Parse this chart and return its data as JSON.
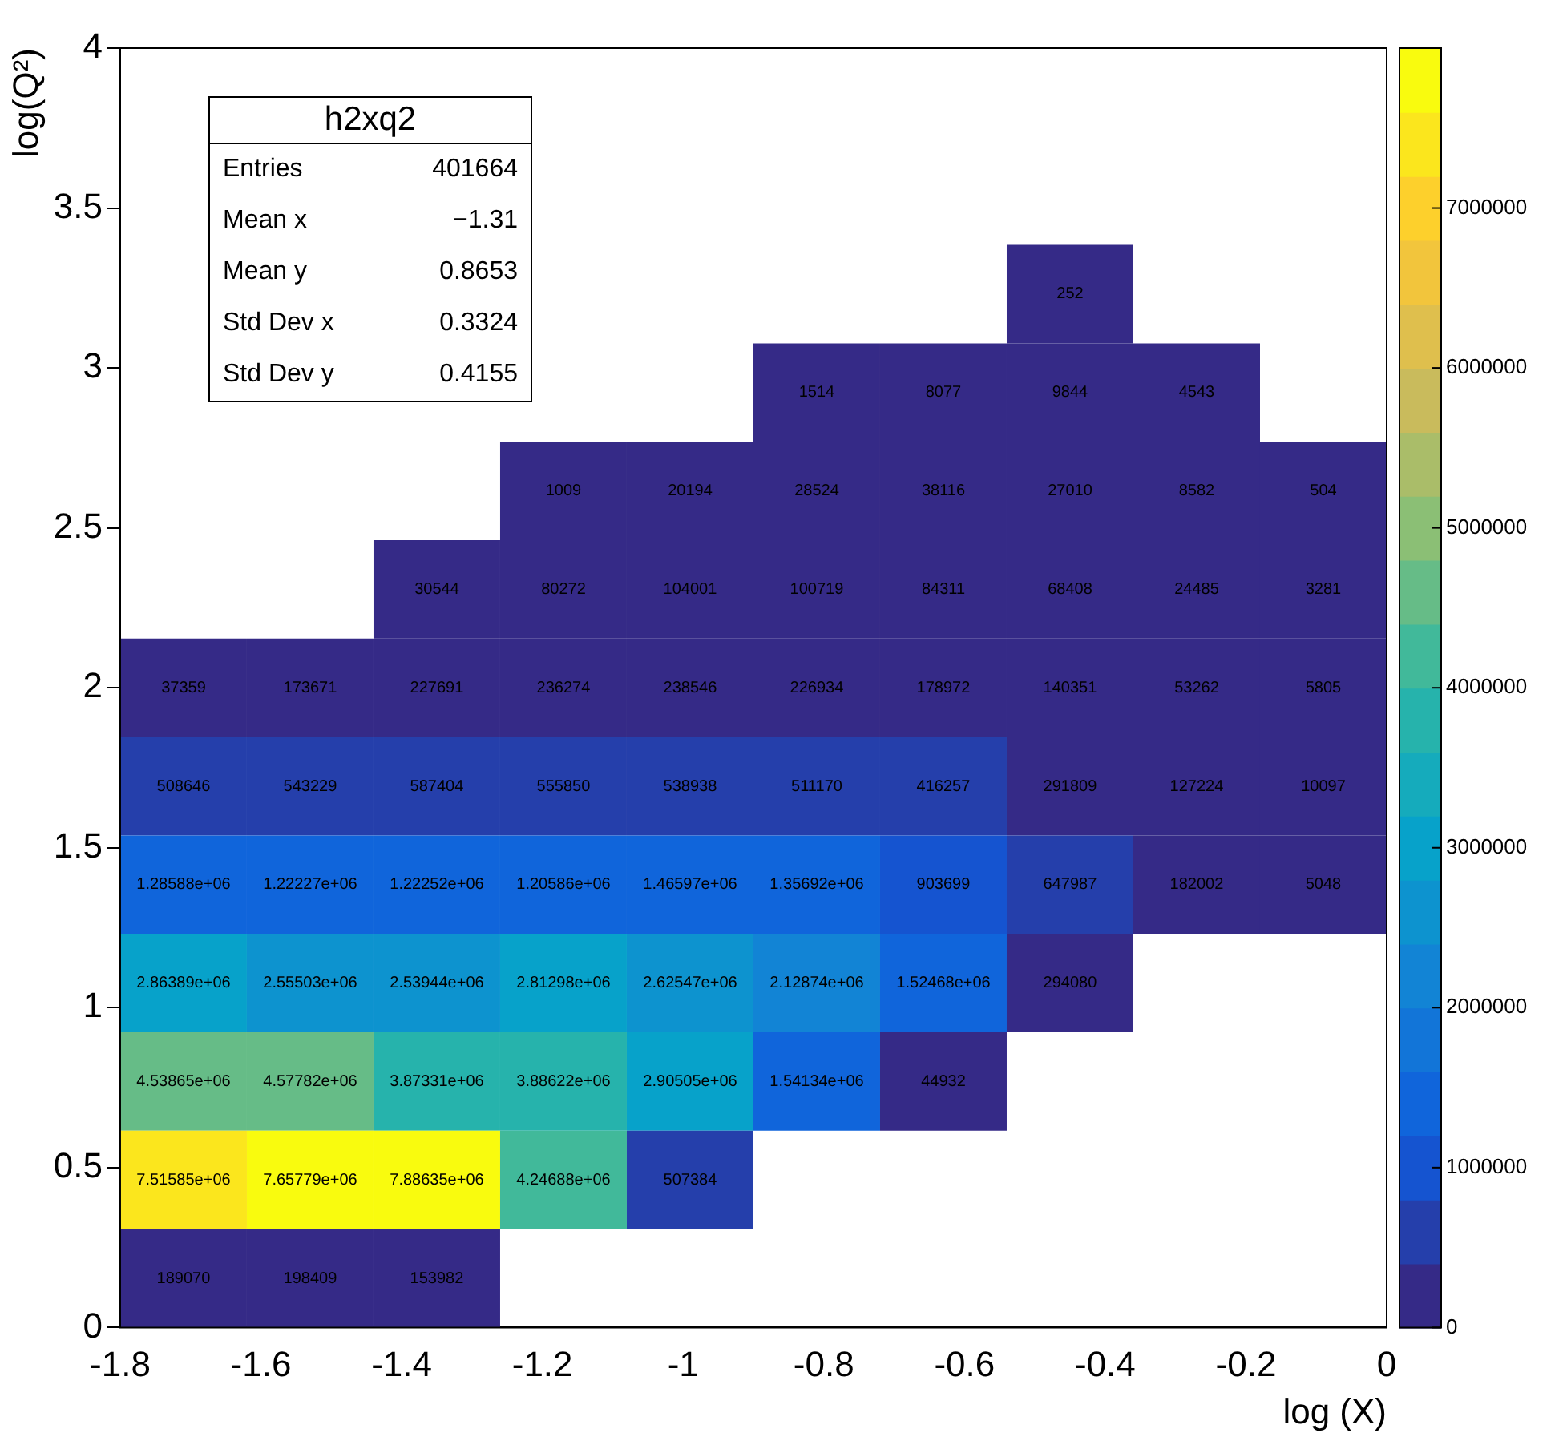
{
  "chart_data": {
    "type": "heatmap",
    "xlabel": "log (X)",
    "ylabel": "log(Q²)",
    "x": [
      -1.71,
      -1.53,
      -1.35,
      -1.17,
      -0.99,
      -0.81,
      -0.63,
      -0.45,
      -0.27,
      -0.09
    ],
    "y": [
      3.2308,
      2.9231,
      2.6154,
      2.3077,
      2.0,
      1.6923,
      1.3846,
      1.0769,
      0.7692,
      0.4615,
      0.1538
    ],
    "xlim": [
      -1.8,
      0
    ],
    "xticks": [
      -1.8,
      -1.6,
      -1.4,
      -1.2,
      -1,
      -0.8,
      -0.6,
      -0.4,
      -0.2,
      0
    ],
    "ylim": [
      0,
      4
    ],
    "yticks": [
      0,
      0.5,
      1,
      1.5,
      2,
      2.5,
      3,
      3.5,
      4
    ],
    "cells": [
      [
        null,
        null,
        null,
        null,
        null,
        null,
        null,
        252,
        null,
        null
      ],
      [
        null,
        null,
        null,
        null,
        null,
        1514,
        8077,
        9844,
        4543,
        null
      ],
      [
        null,
        null,
        null,
        1009,
        20194,
        28524,
        38116,
        27010,
        8582,
        504
      ],
      [
        null,
        null,
        30544,
        80272,
        104001,
        100719,
        84311,
        68408,
        24485,
        3281
      ],
      [
        37359,
        173671,
        227691,
        236274,
        238546,
        226934,
        178972,
        140351,
        53262,
        5805
      ],
      [
        508646,
        543229,
        587404,
        555850,
        538938,
        511170,
        416257,
        291809,
        127224,
        10097
      ],
      [
        1285880,
        1222270,
        1222520,
        1205860,
        1465970,
        1356920,
        903699,
        647987,
        182002,
        5048
      ],
      [
        2863890,
        2555030,
        2539440,
        2812980,
        2625470,
        2128740,
        1524680,
        294080,
        null,
        null
      ],
      [
        4538650,
        4577820,
        3873310,
        3886220,
        2905050,
        1541340,
        44932,
        null,
        null,
        null
      ],
      [
        7515850,
        7657790,
        7886350,
        4246880,
        507384,
        null,
        null,
        null,
        null,
        null
      ],
      [
        189070,
        198409,
        153982,
        null,
        null,
        null,
        null,
        null,
        null,
        null
      ]
    ],
    "data_labels": true,
    "cell_labels": [
      [
        null,
        null,
        null,
        null,
        null,
        null,
        null,
        "252",
        null,
        null
      ],
      [
        null,
        null,
        null,
        null,
        null,
        "1514",
        "8077",
        "9844",
        "4543",
        null
      ],
      [
        null,
        null,
        null,
        "1009",
        "20194",
        "28524",
        "38116",
        "27010",
        "8582",
        "504"
      ],
      [
        null,
        null,
        "30544",
        "80272",
        "104001",
        "100719",
        "84311",
        "68408",
        "24485",
        "3281"
      ],
      [
        "37359",
        "173671",
        "227691",
        "236274",
        "238546",
        "226934",
        "178972",
        "140351",
        "53262",
        "5805"
      ],
      [
        "508646",
        "543229",
        "587404",
        "555850",
        "538938",
        "511170",
        "416257",
        "291809",
        "127224",
        "10097"
      ],
      [
        "1.28588e+06",
        "1.22227e+06",
        "1.22252e+06",
        "1.20586e+06",
        "1.46597e+06",
        "1.35692e+06",
        "903699",
        "647987",
        "182002",
        "5048"
      ],
      [
        "2.86389e+06",
        "2.55503e+06",
        "2.53944e+06",
        "2.81298e+06",
        "2.62547e+06",
        "2.12874e+06",
        "1.52468e+06",
        "294080",
        null,
        null
      ],
      [
        "4.53865e+06",
        "4.57782e+06",
        "3.87331e+06",
        "3.88622e+06",
        "2.90505e+06",
        "1.54134e+06",
        "44932",
        null,
        null,
        null
      ],
      [
        "7.51585e+06",
        "7.65779e+06",
        "7.88635e+06",
        "4.24688e+06",
        "507384",
        null,
        null,
        null,
        null,
        null
      ],
      [
        "189070",
        "198409",
        "153982",
        null,
        null,
        null,
        null,
        null,
        null,
        null
      ]
    ],
    "clim": [
      0,
      8000000
    ],
    "cticks": [
      0,
      1000000,
      2000000,
      3000000,
      4000000,
      5000000,
      6000000,
      7000000
    ],
    "annotations": [
      "h2xq2",
      "Entries",
      "401664",
      "Mean x",
      "−1.31",
      "Mean y",
      "0.8653",
      "Std Dev x",
      "0.3324",
      "Std Dev y",
      "0.4155"
    ]
  }
}
